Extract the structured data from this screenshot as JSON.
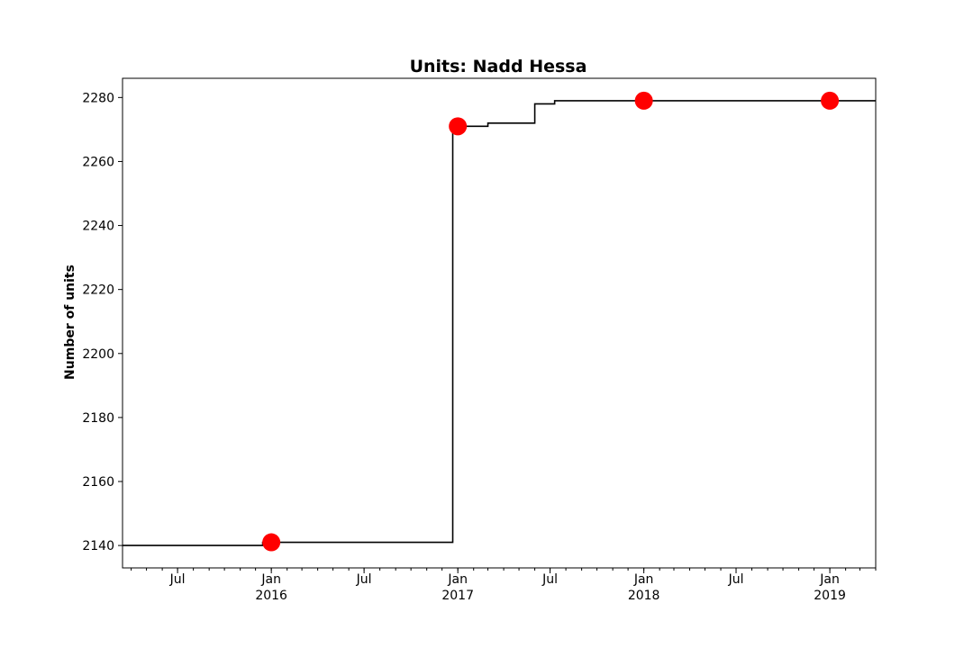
{
  "chart_data": {
    "type": "line",
    "title": "Units: Nadd Hessa",
    "xlabel": "",
    "ylabel": "Number of units",
    "ylim": [
      2133,
      2286
    ],
    "xlim": [
      "2015-03-15",
      "2019-04-01"
    ],
    "grid": false,
    "yticks": [
      2140,
      2160,
      2180,
      2200,
      2220,
      2240,
      2260,
      2280
    ],
    "xticks": [
      {
        "date": "2015-07-01",
        "label": "Jul",
        "sublabel": ""
      },
      {
        "date": "2016-01-01",
        "label": "Jan",
        "sublabel": "2016"
      },
      {
        "date": "2016-07-01",
        "label": "Jul",
        "sublabel": ""
      },
      {
        "date": "2017-01-01",
        "label": "Jan",
        "sublabel": "2017"
      },
      {
        "date": "2017-07-01",
        "label": "Jul",
        "sublabel": ""
      },
      {
        "date": "2018-01-01",
        "label": "Jan",
        "sublabel": "2018"
      },
      {
        "date": "2018-07-01",
        "label": "Jul",
        "sublabel": ""
      },
      {
        "date": "2019-01-01",
        "label": "Jan",
        "sublabel": "2019"
      }
    ],
    "series": [
      {
        "style": "step",
        "color": "#000000",
        "x": [
          "2015-03-15",
          "2015-12-10",
          "2015-12-15",
          "2016-12-20",
          "2016-12-22",
          "2017-03-01",
          "2017-05-20",
          "2017-06-01",
          "2017-07-10",
          "2019-04-01"
        ],
        "y": [
          2140,
          2140,
          2141,
          2141,
          2271,
          2272,
          2272,
          2278,
          2279,
          2279
        ]
      },
      {
        "style": "markers",
        "color": "#ff0000",
        "x": [
          "2016-01-01",
          "2017-01-01",
          "2018-01-01",
          "2019-01-01"
        ],
        "y": [
          2141,
          2271,
          2279,
          2279
        ]
      }
    ]
  }
}
